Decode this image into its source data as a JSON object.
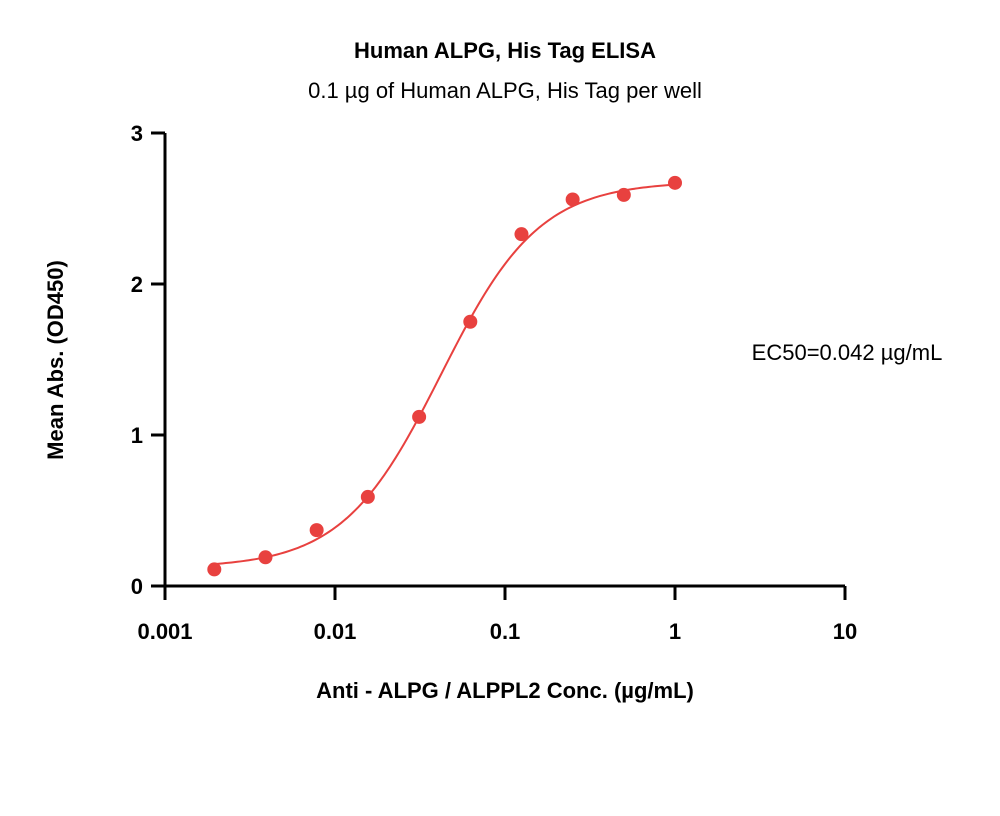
{
  "chart_data": {
    "type": "scatter",
    "title": "Human ALPG, His Tag ELISA",
    "subtitle": "0.1 µg of Human ALPG, His Tag per well",
    "xlabel": "Anti - ALPG / ALPPL2 Conc. (µg/mL)",
    "ylabel": "Mean Abs. (OD450)",
    "x_scale": "log",
    "xlim": [
      0.001,
      10
    ],
    "ylim": [
      0,
      3
    ],
    "x_ticks": [
      0.001,
      0.01,
      0.1,
      1,
      10
    ],
    "x_tick_labels": [
      "0.001",
      "0.01",
      "0.1",
      "1",
      "10"
    ],
    "y_ticks": [
      0,
      1,
      2,
      3
    ],
    "y_tick_labels": [
      "0",
      "1",
      "2",
      "3"
    ],
    "grid": false,
    "legend": "none",
    "color": "#e8413f",
    "series": [
      {
        "x": [
          0.00195,
          0.0039,
          0.0078,
          0.0156,
          0.03125,
          0.0625,
          0.125,
          0.25,
          0.5,
          1
        ],
        "y": [
          0.11,
          0.19,
          0.37,
          0.59,
          1.12,
          1.75,
          2.33,
          2.56,
          2.59,
          2.67
        ]
      }
    ],
    "fit": {
      "type": "4PL",
      "bottom": 0.12,
      "top": 2.68,
      "ec50": 0.042,
      "hill": 1.5
    },
    "annotation": "EC50=0.042 µg/mL"
  }
}
